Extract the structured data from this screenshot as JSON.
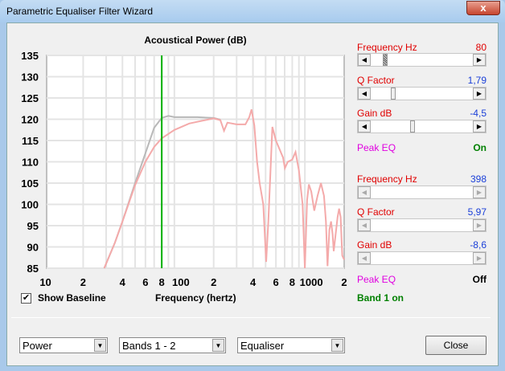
{
  "window": {
    "title": "Parametric Equaliser Filter Wizard",
    "close_glyph": "x"
  },
  "chart_data": {
    "type": "line",
    "title": "Acoustical Power (dB)",
    "xlabel": "Frequency (hertz)",
    "ylabel": "",
    "xscale": "log",
    "xlim": [
      10.5,
      2000
    ],
    "ylim": [
      85,
      135
    ],
    "grid": true,
    "yticks": [
      85,
      90,
      95,
      100,
      105,
      110,
      115,
      120,
      125,
      130,
      135
    ],
    "xtick_labels": [
      {
        "v": 10,
        "t": "10"
      },
      {
        "v": 20,
        "t": "2"
      },
      {
        "v": 40,
        "t": "4"
      },
      {
        "v": 60,
        "t": "6"
      },
      {
        "v": 80,
        "t": "8"
      },
      {
        "v": 100,
        "t": "100"
      },
      {
        "v": 200,
        "t": "2"
      },
      {
        "v": 400,
        "t": "4"
      },
      {
        "v": 600,
        "t": "6"
      },
      {
        "v": 800,
        "t": "8"
      },
      {
        "v": 1000,
        "t": "1000"
      },
      {
        "v": 2000,
        "t": "2"
      }
    ],
    "marker_frequency": 80,
    "marker_color": "#00b000",
    "series": [
      {
        "role": "baseline",
        "color": "#b8b8b8",
        "points": [
          [
            29,
            85
          ],
          [
            35,
            91
          ],
          [
            40,
            96
          ],
          [
            50,
            105
          ],
          [
            60,
            112
          ],
          [
            70,
            118
          ],
          [
            80,
            120.3
          ],
          [
            90,
            120.8
          ],
          [
            100,
            120.5
          ],
          [
            150,
            120.5
          ],
          [
            200,
            120.3
          ],
          [
            225,
            119.9
          ]
        ]
      },
      {
        "role": "equalised",
        "color": "#f4aaaa",
        "points": [
          [
            29,
            85
          ],
          [
            35,
            91
          ],
          [
            40,
            96
          ],
          [
            50,
            104.5
          ],
          [
            60,
            110
          ],
          [
            70,
            113.5
          ],
          [
            80,
            115.5
          ],
          [
            100,
            117.5
          ],
          [
            130,
            119
          ],
          [
            200,
            120.2
          ],
          [
            225,
            119.8
          ],
          [
            240,
            117.3
          ],
          [
            255,
            119.2
          ],
          [
            300,
            118.8
          ],
          [
            350,
            118.8
          ],
          [
            375,
            120.5
          ],
          [
            390,
            122.3
          ],
          [
            410,
            118.5
          ],
          [
            430,
            110
          ],
          [
            450,
            105
          ],
          [
            480,
            100
          ],
          [
            505,
            86.5
          ],
          [
            525,
            96
          ],
          [
            563,
            118.2
          ],
          [
            600,
            115
          ],
          [
            680,
            111
          ],
          [
            703,
            108.5
          ],
          [
            740,
            110
          ],
          [
            800,
            110.5
          ],
          [
            848,
            112.3
          ],
          [
            900,
            108
          ],
          [
            960,
            100
          ],
          [
            1000,
            85
          ],
          [
            1040,
            101
          ],
          [
            1073,
            104.7
          ],
          [
            1120,
            103
          ],
          [
            1179,
            98.5
          ],
          [
            1250,
            102
          ],
          [
            1327,
            105
          ],
          [
            1400,
            102
          ],
          [
            1450,
            96
          ],
          [
            1492,
            85.5
          ],
          [
            1540,
            94
          ],
          [
            1586,
            96
          ],
          [
            1630,
            93
          ],
          [
            1662,
            89
          ],
          [
            1720,
            93
          ],
          [
            1780,
            97
          ],
          [
            1828,
            99
          ],
          [
            1880,
            97
          ],
          [
            1933,
            88
          ],
          [
            2000,
            87
          ]
        ]
      }
    ]
  },
  "options": {
    "show_baseline_label": "Show Baseline",
    "show_baseline_checked": true
  },
  "band1": {
    "freq_label": "Frequency  Hz",
    "freq_value": "80",
    "freq_pos": 0.12,
    "q_label": "Q Factor",
    "q_value": "1,79",
    "q_pos": 0.2,
    "gain_label": "Gain  dB",
    "gain_value": "-4,5",
    "gain_pos": 0.4,
    "type_label": "Peak EQ",
    "state": "On",
    "state_color": "#008000"
  },
  "band2": {
    "freq_label": "Frequency  Hz",
    "freq_value": "398",
    "q_label": "Q Factor",
    "q_value": "5,97",
    "gain_label": "Gain  dB",
    "gain_value": "-8,6",
    "type_label": "Peak EQ",
    "state": "Off"
  },
  "band_status": "Band 1 on",
  "footer": {
    "combo1": "Power",
    "combo2": "Bands 1 - 2",
    "combo3": "Equaliser",
    "close_label": "Close"
  }
}
